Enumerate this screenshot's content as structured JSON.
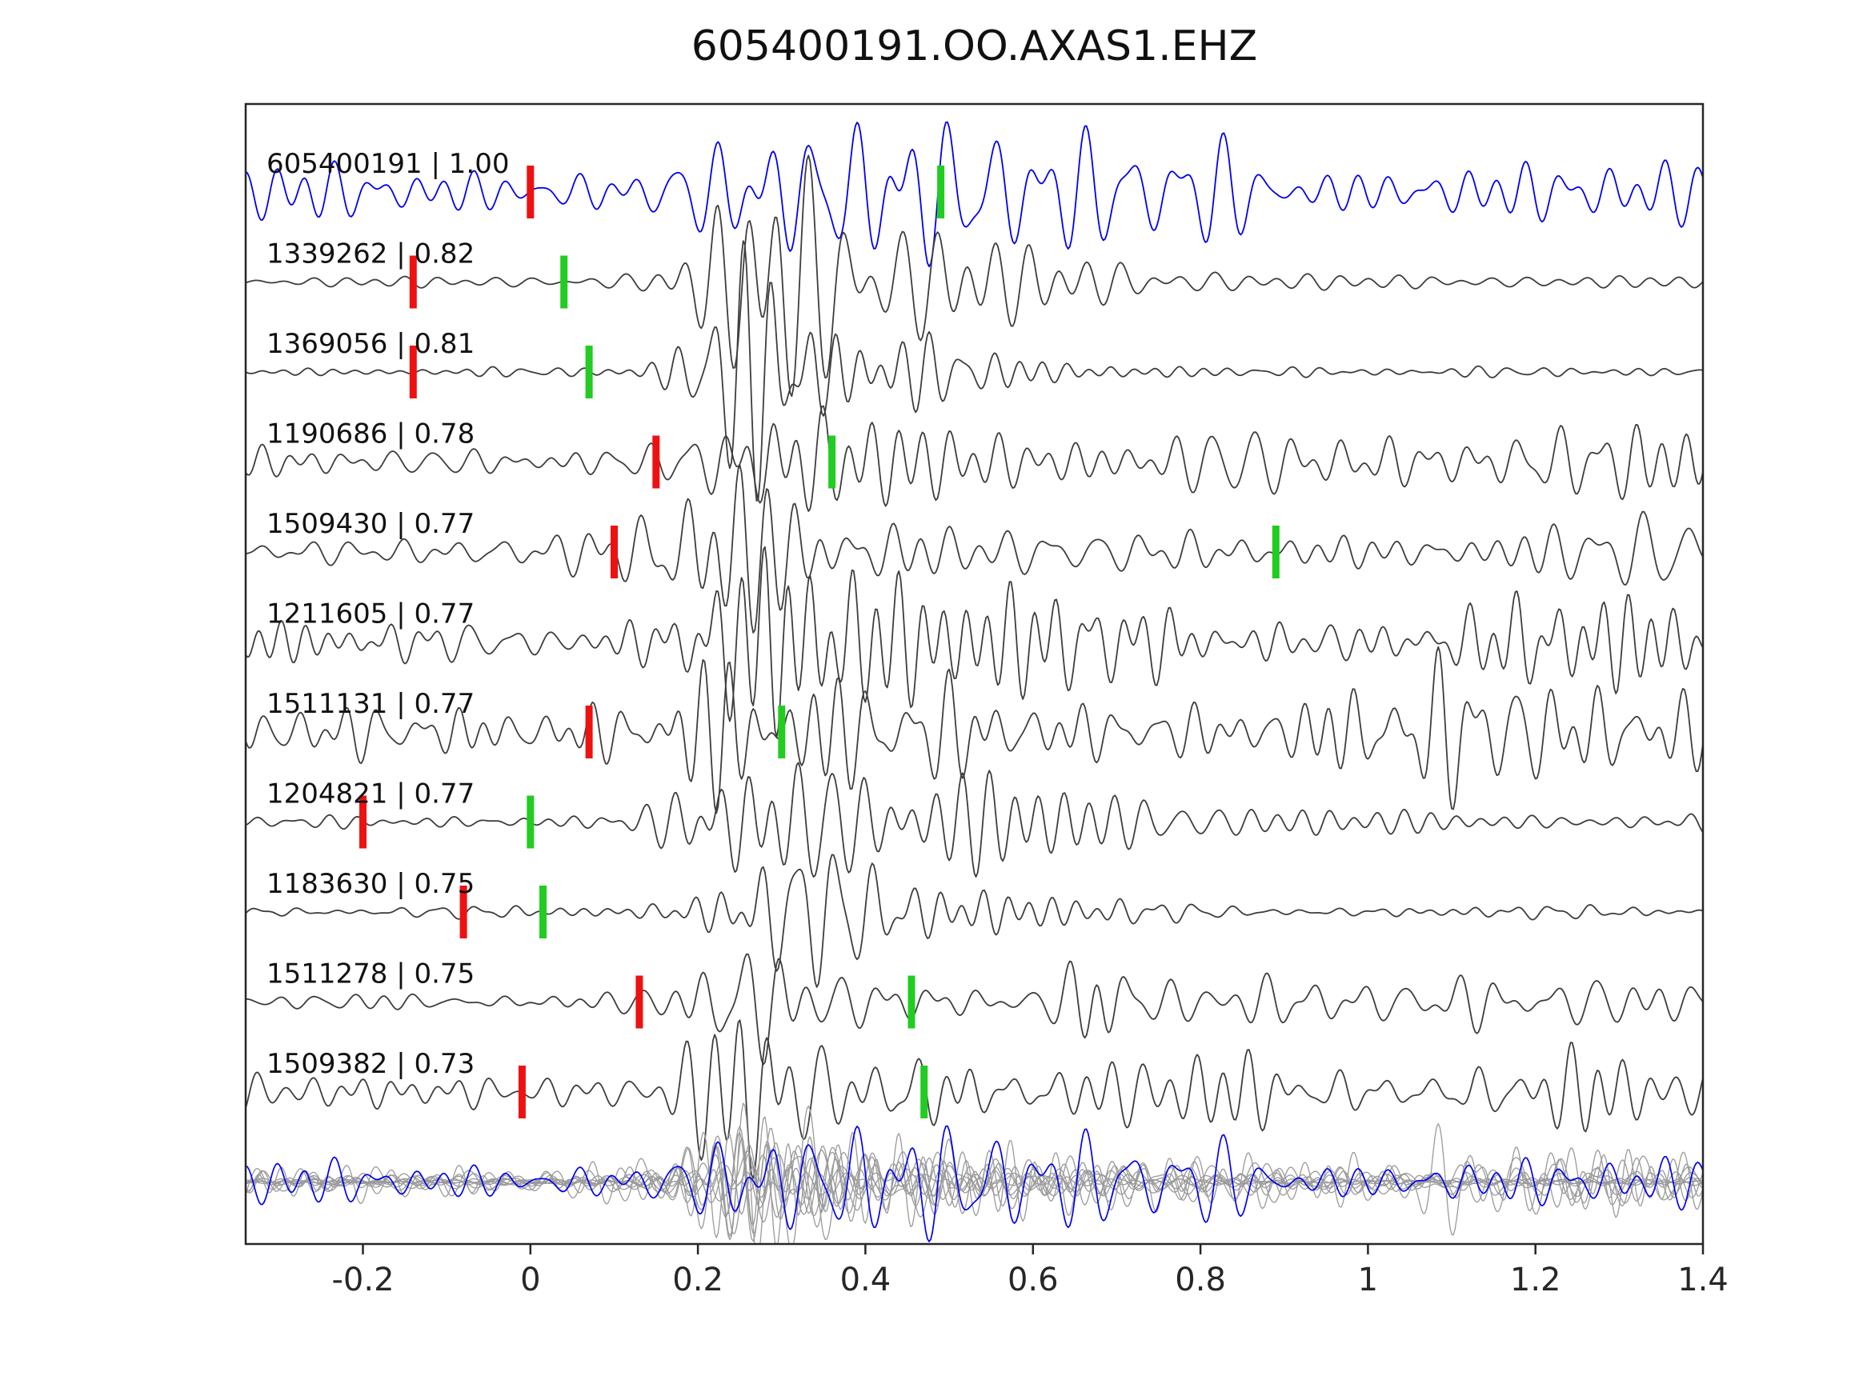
{
  "chart_data": {
    "type": "line",
    "title": "605400191.OO.AXAS1.EHZ",
    "xlabel": "",
    "ylabel": "",
    "xlim": [
      -0.34,
      1.4
    ],
    "xticks": [
      -0.2,
      0,
      0.2,
      0.4,
      0.6,
      0.8,
      1,
      1.2,
      1.4
    ],
    "xtick_labels": [
      "-0.2",
      "0",
      "0.2",
      "0.4",
      "0.6",
      "0.8",
      "1",
      "1.2",
      "1.4"
    ],
    "grid": false,
    "legend": false,
    "colors": {
      "template_trace": "#0000ee",
      "match_trace": "#3d3d3d",
      "overlay_gray": "#9a9a9a",
      "pick_red": "#ee1111",
      "pick_green": "#22cc22",
      "axis": "#262626",
      "label_text": "#111111"
    },
    "traces": [
      {
        "label": "605400191 | 1.00",
        "id": "605400191",
        "correlation": 1.0,
        "color": "#0000ee",
        "picks": {
          "red": 0.0,
          "green": 0.49
        },
        "seed": 101,
        "noise": 0.42,
        "amp": 60,
        "bursts": [
          {
            "t": 0.25,
            "w": 0.2,
            "a": 0.18
          },
          {
            "t": 0.5,
            "w": 0.25,
            "a": 0.22
          },
          {
            "t": 0.82,
            "w": 0.12,
            "a": 0.55
          }
        ]
      },
      {
        "label": "1339262 | 0.82",
        "id": "1339262",
        "correlation": 0.82,
        "color": "#3d3d3d",
        "picks": {
          "red": -0.14,
          "green": 0.04
        },
        "seed": 202,
        "noise": 0.06,
        "amp": 80,
        "bursts": [
          {
            "t": 0.3,
            "w": 0.09,
            "a": 1.05
          },
          {
            "t": 0.45,
            "w": 0.12,
            "a": 0.35
          },
          {
            "t": 0.62,
            "w": 0.16,
            "a": 0.14
          }
        ]
      },
      {
        "label": "1369056 | 0.81",
        "id": "1369056",
        "correlation": 0.81,
        "color": "#3d3d3d",
        "picks": {
          "red": -0.14,
          "green": 0.07
        },
        "seed": 303,
        "noise": 0.05,
        "amp": 80,
        "bursts": [
          {
            "t": 0.28,
            "w": 0.09,
            "a": 1.0
          },
          {
            "t": 0.43,
            "w": 0.12,
            "a": 0.3
          },
          {
            "t": 0.58,
            "w": 0.18,
            "a": 0.12
          }
        ]
      },
      {
        "label": "1190686 | 0.78",
        "id": "1190686",
        "correlation": 0.78,
        "color": "#3d3d3d",
        "picks": {
          "red": 0.15,
          "green": 0.36
        },
        "seed": 404,
        "noise": 0.22,
        "amp": 75,
        "bursts": [
          {
            "t": 0.28,
            "w": 0.08,
            "a": 0.75
          },
          {
            "t": 0.42,
            "w": 0.1,
            "a": 0.3
          },
          {
            "t": 0.9,
            "w": 0.14,
            "a": 0.45
          },
          {
            "t": 1.18,
            "w": 0.14,
            "a": 0.3
          },
          {
            "t": 1.38,
            "w": 0.1,
            "a": 0.28
          }
        ]
      },
      {
        "label": "1509430 | 0.77",
        "id": "1509430",
        "correlation": 0.77,
        "color": "#3d3d3d",
        "picks": {
          "red": 0.1,
          "green": 0.89
        },
        "seed": 505,
        "noise": 0.2,
        "amp": 75,
        "bursts": [
          {
            "t": 0.25,
            "w": 0.1,
            "a": 0.9
          },
          {
            "t": 0.45,
            "w": 0.15,
            "a": 0.4
          },
          {
            "t": 1.3,
            "w": 0.15,
            "a": 0.4
          }
        ]
      },
      {
        "label": "1211605 | 0.77",
        "id": "1211605",
        "correlation": 0.77,
        "color": "#3d3d3d",
        "picks": {
          "red": null,
          "green": null
        },
        "seed": 606,
        "noise": 0.25,
        "amp": 70,
        "bursts": [
          {
            "t": 0.28,
            "w": 0.1,
            "a": 0.8
          },
          {
            "t": 0.5,
            "w": 0.2,
            "a": 0.35
          },
          {
            "t": 0.9,
            "w": 0.2,
            "a": 0.2
          },
          {
            "t": 1.25,
            "w": 0.15,
            "a": 0.28
          }
        ]
      },
      {
        "label": "1511131 | 0.77",
        "id": "1511131",
        "correlation": 0.77,
        "color": "#3d3d3d",
        "picks": {
          "red": 0.07,
          "green": 0.3
        },
        "seed": 707,
        "noise": 0.28,
        "amp": 70,
        "bursts": [
          {
            "t": 0.25,
            "w": 0.1,
            "a": 0.85
          },
          {
            "t": 0.45,
            "w": 0.15,
            "a": 0.35
          },
          {
            "t": 1.05,
            "w": 0.12,
            "a": 0.5
          },
          {
            "t": 1.32,
            "w": 0.1,
            "a": 0.3
          }
        ]
      },
      {
        "label": "1204821 | 0.77",
        "id": "1204821",
        "correlation": 0.77,
        "color": "#3d3d3d",
        "picks": {
          "red": -0.2,
          "green": 0.0
        },
        "seed": 808,
        "noise": 0.08,
        "amp": 78,
        "bursts": [
          {
            "t": 0.3,
            "w": 0.1,
            "a": 0.95
          },
          {
            "t": 0.5,
            "w": 0.15,
            "a": 0.35
          },
          {
            "t": 0.72,
            "w": 0.2,
            "a": 0.14
          }
        ]
      },
      {
        "label": "1183630 | 0.75",
        "id": "1183630",
        "correlation": 0.75,
        "color": "#3d3d3d",
        "picks": {
          "red": -0.08,
          "green": 0.015
        },
        "seed": 909,
        "noise": 0.07,
        "amp": 80,
        "bursts": [
          {
            "t": 0.32,
            "w": 0.1,
            "a": 1.05
          },
          {
            "t": 0.5,
            "w": 0.12,
            "a": 0.3
          },
          {
            "t": 0.66,
            "w": 0.14,
            "a": 0.1
          }
        ]
      },
      {
        "label": "1511278 | 0.75",
        "id": "1511278",
        "correlation": 0.75,
        "color": "#3d3d3d",
        "picks": {
          "red": 0.13,
          "green": 0.455
        },
        "seed": 1010,
        "noise": 0.1,
        "amp": 75,
        "bursts": [
          {
            "t": 0.25,
            "w": 0.08,
            "a": 0.45
          },
          {
            "t": 0.4,
            "w": 0.12,
            "a": 0.2
          },
          {
            "t": 0.68,
            "w": 0.04,
            "a": 0.6
          },
          {
            "t": 0.92,
            "w": 0.2,
            "a": 0.15
          },
          {
            "t": 1.22,
            "w": 0.2,
            "a": 0.12
          }
        ]
      },
      {
        "label": "1509382 | 0.73",
        "id": "1509382",
        "correlation": 0.73,
        "color": "#3d3d3d",
        "picks": {
          "red": -0.01,
          "green": 0.47
        },
        "seed": 1111,
        "noise": 0.22,
        "amp": 70,
        "bursts": [
          {
            "t": 0.28,
            "w": 0.09,
            "a": 0.75
          },
          {
            "t": 0.45,
            "w": 0.12,
            "a": 0.3
          },
          {
            "t": 0.82,
            "w": 0.2,
            "a": 0.2
          },
          {
            "t": 1.2,
            "w": 0.15,
            "a": 0.25
          }
        ]
      }
    ],
    "overlay": {
      "amp": 48,
      "gray_stroke": "#9a9a9a",
      "blue_stroke": "#0000ee"
    }
  }
}
